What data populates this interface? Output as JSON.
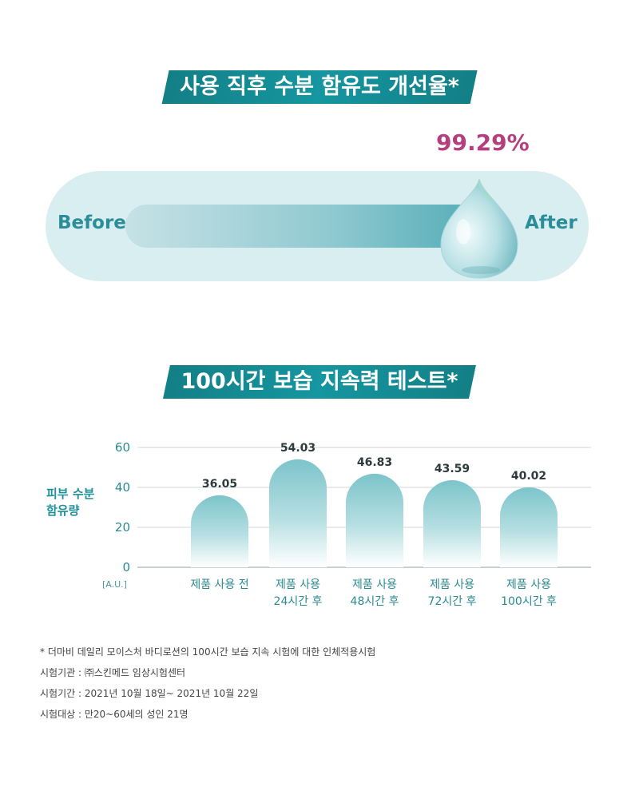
{
  "section1": {
    "title": "사용 직후 수분 함유도 개선율*",
    "improvement": "99.29%",
    "before_label": "Before",
    "after_label": "After"
  },
  "section2": {
    "title": "100시간 보습 지속력 테스트*"
  },
  "chart_data": {
    "type": "bar",
    "ylabel": "피부 수분 함유량",
    "yunit": "[A.U.]",
    "ylim": [
      0,
      60
    ],
    "yticks": [
      0,
      20,
      40,
      60
    ],
    "categories": [
      [
        "제품 사용 전"
      ],
      [
        "제품 사용",
        "24시간 후"
      ],
      [
        "제품 사용",
        "48시간 후"
      ],
      [
        "제품 사용",
        "72시간 후"
      ],
      [
        "제품 사용",
        "100시간 후"
      ]
    ],
    "values": [
      36.05,
      54.03,
      46.83,
      43.59,
      40.02
    ],
    "value_labels": [
      "36.05",
      "54.03",
      "46.83",
      "43.59",
      "40.02"
    ],
    "grid": true,
    "colors": {
      "bar_top": "#7cc4cb",
      "bar_bottom": "#ffffff",
      "label": "#2a8a93",
      "grid": "#d2d6d8"
    }
  },
  "footnotes": [
    "* 더마비 데일리 모이스처 바디로션의 100시간 보습 지속 시험에 대한 인체적용시험",
    "시험기관 : ㈜스킨메드 임상시험센터",
    "시험기간 : 2021년 10월 18일~ 2021년 10월 22일",
    "시험대상 : 만20~60세의 성인 21명"
  ]
}
